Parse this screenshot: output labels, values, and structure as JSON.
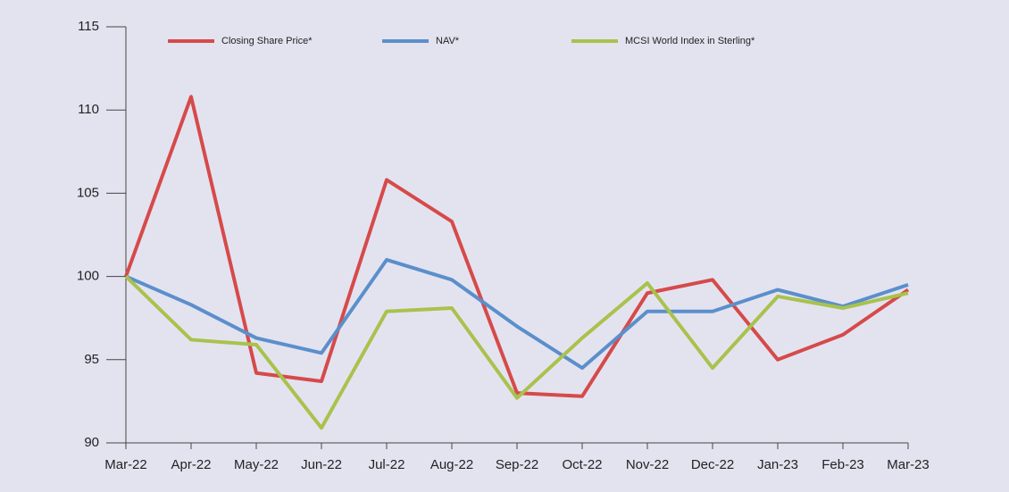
{
  "chart_data": {
    "type": "line",
    "categories": [
      "Mar-22",
      "Apr-22",
      "May-22",
      "Jun-22",
      "Jul-22",
      "Aug-22",
      "Sep-22",
      "Oct-22",
      "Nov-22",
      "Dec-22",
      "Jan-23",
      "Feb-23",
      "Mar-23"
    ],
    "series": [
      {
        "name": "Closing Share Price*",
        "color": "#d64a4a",
        "values": [
          100,
          110.8,
          94.2,
          93.7,
          105.8,
          103.3,
          93.0,
          92.8,
          99.0,
          99.8,
          95.0,
          96.5,
          99.2
        ]
      },
      {
        "name": "NAV*",
        "color": "#5b8fcb",
        "values": [
          100,
          98.3,
          96.3,
          95.4,
          101.0,
          99.8,
          97.0,
          94.5,
          97.9,
          97.9,
          99.2,
          98.2,
          99.5
        ]
      },
      {
        "name": "MCSI World Index in Sterling*",
        "color": "#a8c24c",
        "values": [
          100,
          96.2,
          95.9,
          90.9,
          97.9,
          98.1,
          92.7,
          96.3,
          99.6,
          94.5,
          98.8,
          98.1,
          99.0
        ]
      }
    ],
    "ylim": [
      90,
      115
    ],
    "yticks": [
      90,
      95,
      100,
      105,
      110,
      115
    ],
    "grid": false,
    "legend": "top"
  }
}
